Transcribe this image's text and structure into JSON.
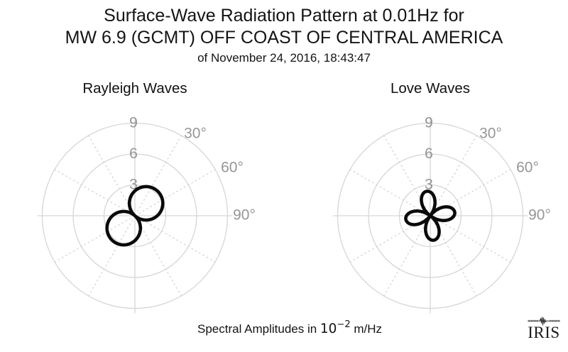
{
  "figure_title": {
    "line1": "Surface-Wave Radiation Pattern at 0.01Hz for",
    "line2": "MW 6.9 (GCMT) OFF COAST OF CENTRAL AMERICA",
    "line3": "of November 24, 2016, 18:43:47"
  },
  "caption": {
    "prefix": "Spectral Amplitudes in ",
    "mantissa": "10",
    "exponent": "−2",
    "suffix": " m/Hz"
  },
  "logo": {
    "text": "IRIS"
  },
  "colors": {
    "background": "#ffffff",
    "grid": "#d6d6d6",
    "axis_labels": "#969696",
    "pattern": "#0a0a0a",
    "title_text": "#141414"
  },
  "chart_data": [
    {
      "type": "line",
      "projection": "polar",
      "title": "Rayleigh Waves",
      "pattern_shape": "two-lobed figure-eight",
      "n_lobes": 2,
      "harmonic": 1,
      "amplitude": 3.25,
      "lobe_azimuths_deg": [
        42,
        222
      ],
      "r_ticks": [
        3,
        6,
        9
      ],
      "r_max": 9,
      "r_units": "10⁻² m/Hz",
      "zero_azimuth": "up (North)",
      "direction": "clockwise",
      "grid": "rings solid, spokes dotted",
      "spoke_interval_deg": 30,
      "angle_labels": [
        {
          "angle_deg": 30,
          "label": "30°"
        },
        {
          "angle_deg": 60,
          "label": "60°"
        },
        {
          "angle_deg": 90,
          "label": "90°"
        }
      ],
      "sampled": {
        "azimuth_deg_step": 15,
        "r": [
          2.42,
          2.9,
          3.18,
          3.25,
          3.09,
          2.73,
          2.17,
          1.48,
          0.68,
          0.17,
          1.0,
          1.77,
          2.42,
          2.9,
          3.18,
          3.25,
          3.09,
          2.73,
          2.17,
          1.48,
          0.68,
          0.17,
          1.0,
          1.77
        ]
      }
    },
    {
      "type": "line",
      "projection": "polar",
      "title": "Love Waves",
      "pattern_shape": "four-lobed cloverleaf",
      "n_lobes": 4,
      "harmonic": 2,
      "amplitude": 2.4,
      "lobe_azimuths_deg": [
        352,
        82,
        172,
        262
      ],
      "r_ticks": [
        3,
        6,
        9
      ],
      "r_max": 9,
      "r_units": "10⁻² m/Hz",
      "zero_azimuth": "up (North)",
      "direction": "clockwise",
      "grid": "rings solid, spokes dotted",
      "spoke_interval_deg": 30,
      "angle_labels": [
        {
          "angle_deg": 30,
          "label": "30°"
        },
        {
          "angle_deg": 60,
          "label": "60°"
        },
        {
          "angle_deg": 90,
          "label": "90°"
        }
      ],
      "sampled": {
        "azimuth_deg_step": 15,
        "r": [
          2.31,
          1.67,
          0.58,
          0.66,
          1.73,
          2.33,
          2.31,
          1.67,
          0.58,
          0.66,
          1.73,
          2.33,
          2.31,
          1.67,
          0.58,
          0.66,
          1.73,
          2.33,
          2.31,
          1.67,
          0.58,
          0.66,
          1.73,
          2.33
        ]
      }
    }
  ]
}
